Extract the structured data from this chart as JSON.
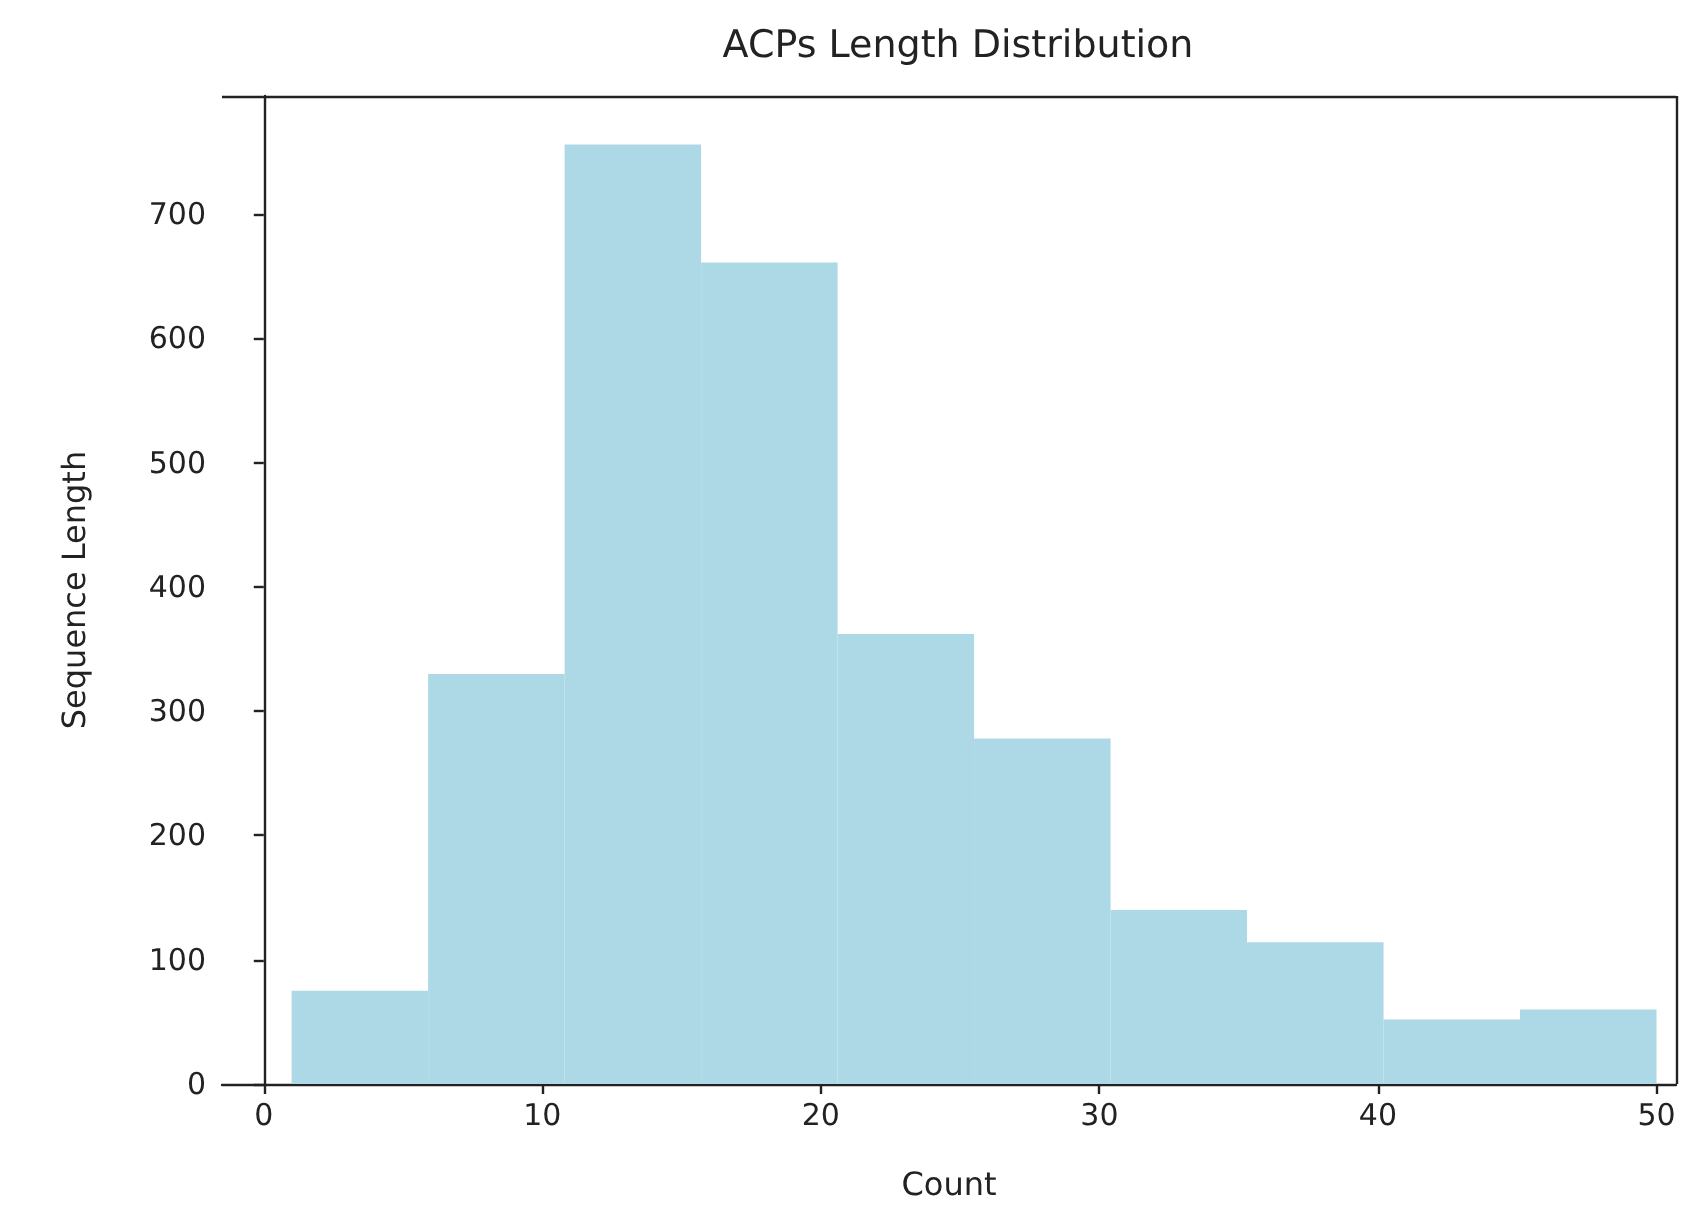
{
  "chart_data": {
    "type": "histogram",
    "title": "ACPs Length Distribution",
    "xlabel": "Count",
    "ylabel": "Sequence Length",
    "bins": [
      1,
      5.9,
      10.8,
      15.7,
      20.6,
      25.5,
      30.4,
      35.3,
      40.2,
      45.1,
      50
    ],
    "values": [
      75,
      330,
      756,
      661,
      362,
      278,
      140,
      114,
      52,
      60
    ],
    "color": "#add8e6",
    "xlim": [
      -1.5,
      50.7
    ],
    "xticks": [
      0,
      10,
      20,
      30,
      40,
      50
    ],
    "ylim": [
      0,
      795
    ],
    "yticks": [
      0,
      100,
      200,
      300,
      400,
      500,
      600,
      700
    ],
    "grid": false
  }
}
